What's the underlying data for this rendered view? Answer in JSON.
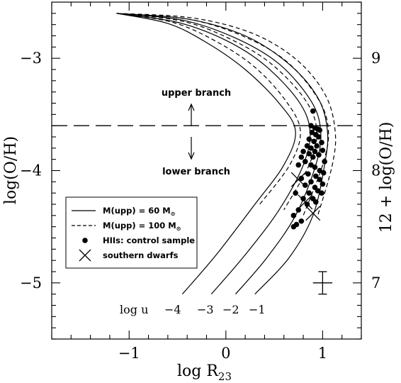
{
  "chart_data": {
    "type": "line",
    "xlabel": "log R23",
    "ylabel": "log(O/H)",
    "ylabel_right": "12 + log(O/H)",
    "xlim": [
      -1.8,
      1.4
    ],
    "ylim": [
      -5.5,
      -2.5
    ],
    "x_ticks": [
      -1,
      0,
      1
    ],
    "y_ticks": [
      -5,
      -4,
      -3
    ],
    "y_ticks_right": [
      7,
      8,
      9
    ],
    "branch_divider_y": -3.6,
    "annotations": {
      "upper": "upper branch",
      "lower": "lower branch"
    },
    "u_prefix": "log u",
    "u_labels": [
      "−4",
      "−3",
      "−2",
      "−1"
    ],
    "legend": [
      {
        "label": "M(upp) = 60 M",
        "sub": "⊙",
        "marker": "solid-line"
      },
      {
        "label": "M(upp) = 100 M",
        "sub": "⊙",
        "marker": "dashed-line"
      },
      {
        "label": "HIIs: control sample",
        "marker": "dot"
      },
      {
        "label": "southern dwarfs",
        "marker": "cross"
      }
    ],
    "series": [
      {
        "name": "M(upp) = 60 M⊙",
        "log_u": -4,
        "style": "solid",
        "points": [
          [
            -1.13,
            -2.6
          ],
          [
            -0.6,
            -2.69
          ],
          [
            -0.2,
            -2.86
          ],
          [
            0.2,
            -3.1
          ],
          [
            0.55,
            -3.4
          ],
          [
            0.72,
            -3.65
          ],
          [
            0.6,
            -3.95
          ],
          [
            0.3,
            -4.3
          ],
          [
            -0.1,
            -4.75
          ],
          [
            -0.45,
            -5.1
          ]
        ]
      },
      {
        "name": "M(upp) = 60 M⊙",
        "log_u": -3,
        "style": "solid",
        "points": [
          [
            -1.13,
            -2.6
          ],
          [
            -0.5,
            -2.68
          ],
          [
            0.0,
            -2.84
          ],
          [
            0.4,
            -3.06
          ],
          [
            0.75,
            -3.38
          ],
          [
            0.87,
            -3.65
          ],
          [
            0.8,
            -3.95
          ],
          [
            0.55,
            -4.35
          ],
          [
            0.2,
            -4.75
          ],
          [
            -0.15,
            -5.1
          ]
        ]
      },
      {
        "name": "M(upp) = 60 M⊙",
        "log_u": -2,
        "style": "solid",
        "points": [
          [
            -1.13,
            -2.6
          ],
          [
            -0.45,
            -2.66
          ],
          [
            0.1,
            -2.82
          ],
          [
            0.55,
            -3.05
          ],
          [
            0.88,
            -3.38
          ],
          [
            0.98,
            -3.65
          ],
          [
            0.93,
            -3.95
          ],
          [
            0.72,
            -4.4
          ],
          [
            0.42,
            -4.78
          ],
          [
            0.1,
            -5.1
          ]
        ]
      },
      {
        "name": "M(upp) = 60 M⊙",
        "log_u": -1,
        "style": "solid",
        "points": [
          [
            -1.13,
            -2.6
          ],
          [
            -0.4,
            -2.65
          ],
          [
            0.2,
            -2.8
          ],
          [
            0.65,
            -3.05
          ],
          [
            0.95,
            -3.35
          ],
          [
            1.05,
            -3.65
          ],
          [
            1.02,
            -3.95
          ],
          [
            0.9,
            -4.4
          ],
          [
            0.65,
            -4.78
          ],
          [
            0.3,
            -5.1
          ]
        ]
      },
      {
        "name": "M(upp) = 100 M⊙",
        "log_u": -4,
        "style": "dashed",
        "points": [
          [
            -1.13,
            -2.6
          ],
          [
            -0.55,
            -2.68
          ],
          [
            -0.1,
            -2.85
          ],
          [
            0.3,
            -3.08
          ],
          [
            0.62,
            -3.38
          ],
          [
            0.77,
            -3.65
          ],
          [
            0.66,
            -3.95
          ],
          [
            0.35,
            -4.3
          ]
        ]
      },
      {
        "name": "M(upp) = 100 M⊙",
        "log_u": -3,
        "style": "dashed",
        "points": [
          [
            -1.13,
            -2.6
          ],
          [
            -0.45,
            -2.67
          ],
          [
            0.05,
            -2.83
          ],
          [
            0.47,
            -3.05
          ],
          [
            0.82,
            -3.37
          ],
          [
            0.94,
            -3.65
          ],
          [
            0.86,
            -3.95
          ],
          [
            0.6,
            -4.35
          ]
        ]
      },
      {
        "name": "M(upp) = 100 M⊙",
        "log_u": -2,
        "style": "dashed",
        "points": [
          [
            -1.13,
            -2.6
          ],
          [
            -0.4,
            -2.65
          ],
          [
            0.17,
            -2.8
          ],
          [
            0.63,
            -3.03
          ],
          [
            0.96,
            -3.37
          ],
          [
            1.06,
            -3.65
          ],
          [
            1.0,
            -3.95
          ],
          [
            0.8,
            -4.4
          ]
        ]
      },
      {
        "name": "M(upp) = 100 M⊙",
        "log_u": -1,
        "style": "dashed",
        "points": [
          [
            -1.13,
            -2.6
          ],
          [
            -0.35,
            -2.64
          ],
          [
            0.28,
            -2.78
          ],
          [
            0.74,
            -3.02
          ],
          [
            1.03,
            -3.33
          ],
          [
            1.13,
            -3.65
          ],
          [
            1.1,
            -3.95
          ],
          [
            0.95,
            -4.4
          ]
        ]
      }
    ],
    "control_sample": [
      [
        0.9,
        -3.47
      ],
      [
        0.88,
        -3.6
      ],
      [
        0.92,
        -3.62
      ],
      [
        0.95,
        -3.63
      ],
      [
        0.97,
        -3.64
      ],
      [
        0.89,
        -3.66
      ],
      [
        0.93,
        -3.68
      ],
      [
        0.96,
        -3.7
      ],
      [
        0.86,
        -3.72
      ],
      [
        0.91,
        -3.74
      ],
      [
        0.99,
        -3.75
      ],
      [
        0.84,
        -3.78
      ],
      [
        0.94,
        -3.78
      ],
      [
        0.88,
        -3.8
      ],
      [
        0.92,
        -3.83
      ],
      [
        1.0,
        -3.82
      ],
      [
        0.8,
        -3.83
      ],
      [
        0.86,
        -3.85
      ],
      [
        0.96,
        -3.86
      ],
      [
        0.78,
        -3.88
      ],
      [
        0.9,
        -3.88
      ],
      [
        0.82,
        -3.92
      ],
      [
        1.02,
        -3.92
      ],
      [
        0.88,
        -3.95
      ],
      [
        0.75,
        -3.95
      ],
      [
        0.92,
        -3.97
      ],
      [
        0.97,
        -4.0
      ],
      [
        1.01,
        -4.02
      ],
      [
        0.85,
        -4.03
      ],
      [
        0.93,
        -4.05
      ],
      [
        0.78,
        -4.07
      ],
      [
        0.97,
        -4.08
      ],
      [
        0.88,
        -4.1
      ],
      [
        1.0,
        -4.12
      ],
      [
        0.82,
        -4.13
      ],
      [
        0.92,
        -4.15
      ],
      [
        0.95,
        -4.18
      ],
      [
        0.72,
        -4.2
      ],
      [
        0.86,
        -4.2
      ],
      [
        0.99,
        -4.2
      ],
      [
        0.8,
        -4.25
      ],
      [
        0.9,
        -4.25
      ],
      [
        0.93,
        -4.28
      ],
      [
        0.84,
        -4.3
      ],
      [
        0.75,
        -4.35
      ],
      [
        0.7,
        -4.4
      ],
      [
        0.78,
        -4.45
      ],
      [
        0.73,
        -4.48
      ],
      [
        0.7,
        -4.5
      ]
    ],
    "southern_dwarfs": [
      [
        0.75,
        -4.08
      ],
      [
        0.82,
        -4.28
      ],
      [
        0.9,
        -4.38
      ]
    ],
    "error_bar": {
      "x": 1.0,
      "y": -5.0,
      "xerr": 0.1,
      "yerr": 0.1
    }
  }
}
